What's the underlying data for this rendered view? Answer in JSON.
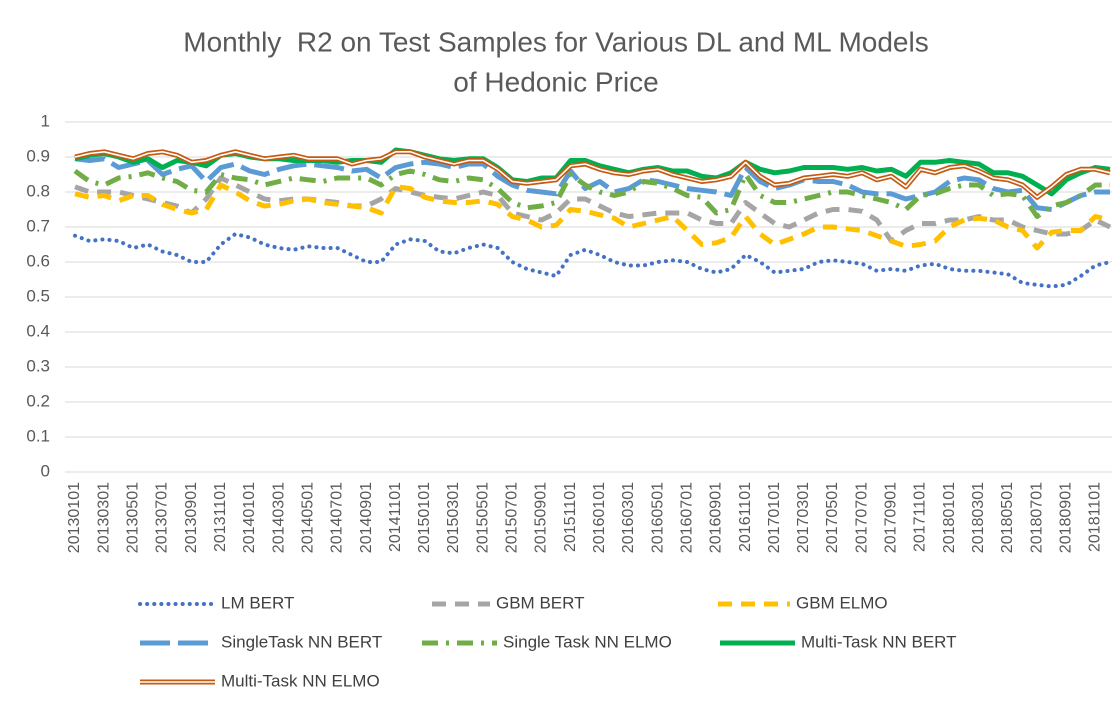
{
  "chart_data": {
    "type": "line",
    "title": [
      "Monthly  R2 on Test Samples for Various DL and ML Models",
      "of Hedonic Price"
    ],
    "categories": [
      "20130101",
      null,
      "20130301",
      null,
      "20130501",
      null,
      "20130701",
      null,
      "20130901",
      null,
      "20131101",
      null,
      "20140101",
      null,
      "20140301",
      null,
      "20140501",
      null,
      "20140701",
      null,
      "20140901",
      null,
      "20141101",
      null,
      "20150101",
      null,
      "20150301",
      null,
      "20150501",
      null,
      "20150701",
      null,
      "20150901",
      null,
      "20151101",
      null,
      "20160101",
      null,
      "20160301",
      null,
      "20160501",
      null,
      "20160701",
      null,
      "20160901",
      null,
      "20161101",
      null,
      "20170101",
      null,
      "20170301",
      null,
      "20170501",
      null,
      "20170701",
      null,
      "20170901",
      null,
      "20171101",
      null,
      "20180101",
      null,
      "20180301",
      null,
      "20180501",
      null,
      "20180701",
      null,
      "20180901",
      null,
      "20181101",
      null
    ],
    "ylim": [
      0,
      1
    ],
    "yticks": [
      0,
      0.1,
      0.2,
      0.3,
      0.4,
      0.5,
      0.6,
      0.7,
      0.8,
      0.9,
      1
    ],
    "grid": true,
    "legend": "bottom",
    "series": [
      {
        "name": "LM BERT",
        "color": "#4472c4",
        "style": "dot",
        "values": [
          0.675,
          0.66,
          0.665,
          0.66,
          0.64,
          0.65,
          0.63,
          0.62,
          0.6,
          0.6,
          0.65,
          0.68,
          0.67,
          0.65,
          0.64,
          0.635,
          0.645,
          0.64,
          0.64,
          0.62,
          0.6,
          0.6,
          0.65,
          0.665,
          0.66,
          0.63,
          0.625,
          0.64,
          0.65,
          0.64,
          0.6,
          0.58,
          0.57,
          0.56,
          0.62,
          0.635,
          0.62,
          0.6,
          0.59,
          0.59,
          0.6,
          0.605,
          0.6,
          0.58,
          0.57,
          0.58,
          0.62,
          0.6,
          0.57,
          0.575,
          0.58,
          0.6,
          0.605,
          0.6,
          0.595,
          0.575,
          0.58,
          0.575,
          0.59,
          0.595,
          0.58,
          0.575,
          0.575,
          0.57,
          0.565,
          0.54,
          0.535,
          0.53,
          0.535,
          0.56,
          0.59,
          0.6
        ]
      },
      {
        "name": "GBM BERT",
        "color": "#a5a5a5",
        "style": "dash",
        "values": [
          0.815,
          0.8,
          0.8,
          0.8,
          0.79,
          0.78,
          0.77,
          0.76,
          0.74,
          0.78,
          0.84,
          0.82,
          0.8,
          0.78,
          0.775,
          0.78,
          0.78,
          0.775,
          0.77,
          0.76,
          0.76,
          0.78,
          0.81,
          0.8,
          0.79,
          0.785,
          0.78,
          0.79,
          0.8,
          0.79,
          0.74,
          0.73,
          0.72,
          0.74,
          0.78,
          0.78,
          0.76,
          0.74,
          0.73,
          0.735,
          0.74,
          0.74,
          0.74,
          0.72,
          0.71,
          0.71,
          0.77,
          0.74,
          0.71,
          0.7,
          0.72,
          0.74,
          0.75,
          0.75,
          0.745,
          0.72,
          0.66,
          0.69,
          0.71,
          0.71,
          0.72,
          0.72,
          0.73,
          0.72,
          0.72,
          0.7,
          0.69,
          0.68,
          0.68,
          0.69,
          0.72,
          0.7
        ]
      },
      {
        "name": "GBM ELMO",
        "color": "#ffc000",
        "style": "dash",
        "values": [
          0.795,
          0.785,
          0.79,
          0.775,
          0.79,
          0.79,
          0.765,
          0.75,
          0.74,
          0.75,
          0.82,
          0.8,
          0.775,
          0.76,
          0.765,
          0.775,
          0.78,
          0.77,
          0.765,
          0.76,
          0.755,
          0.74,
          0.815,
          0.81,
          0.785,
          0.775,
          0.77,
          0.77,
          0.775,
          0.765,
          0.73,
          0.72,
          0.7,
          0.705,
          0.75,
          0.745,
          0.735,
          0.725,
          0.7,
          0.71,
          0.72,
          0.73,
          0.69,
          0.65,
          0.655,
          0.67,
          0.73,
          0.68,
          0.65,
          0.665,
          0.68,
          0.7,
          0.7,
          0.695,
          0.69,
          0.675,
          0.66,
          0.645,
          0.65,
          0.66,
          0.7,
          0.72,
          0.725,
          0.72,
          0.7,
          0.69,
          0.64,
          0.685,
          0.69,
          0.69,
          0.73,
          0.72
        ]
      },
      {
        "name": "SingleTask NN BERT",
        "color": "#5b9bd5",
        "style": "longdash",
        "values": [
          0.895,
          0.89,
          0.895,
          0.87,
          0.88,
          0.89,
          0.85,
          0.865,
          0.875,
          0.83,
          0.87,
          0.88,
          0.86,
          0.85,
          0.865,
          0.875,
          0.88,
          0.875,
          0.87,
          0.86,
          0.865,
          0.84,
          0.87,
          0.88,
          0.885,
          0.88,
          0.87,
          0.88,
          0.88,
          0.845,
          0.82,
          0.805,
          0.8,
          0.795,
          0.86,
          0.81,
          0.83,
          0.8,
          0.81,
          0.835,
          0.83,
          0.82,
          0.81,
          0.805,
          0.8,
          0.79,
          0.87,
          0.83,
          0.81,
          0.82,
          0.835,
          0.83,
          0.83,
          0.82,
          0.8,
          0.795,
          0.795,
          0.78,
          0.79,
          0.8,
          0.83,
          0.84,
          0.835,
          0.81,
          0.8,
          0.805,
          0.755,
          0.75,
          0.77,
          0.79,
          0.8,
          0.8
        ]
      },
      {
        "name": "Single Task NN ELMO",
        "color": "#70ad47",
        "style": "dashdot",
        "values": [
          0.86,
          0.83,
          0.82,
          0.84,
          0.845,
          0.855,
          0.84,
          0.83,
          0.805,
          0.8,
          0.85,
          0.84,
          0.835,
          0.82,
          0.83,
          0.84,
          0.835,
          0.83,
          0.84,
          0.84,
          0.84,
          0.82,
          0.85,
          0.86,
          0.85,
          0.835,
          0.83,
          0.84,
          0.835,
          0.81,
          0.77,
          0.755,
          0.76,
          0.77,
          0.85,
          0.82,
          0.8,
          0.79,
          0.8,
          0.83,
          0.825,
          0.81,
          0.79,
          0.785,
          0.74,
          0.75,
          0.85,
          0.79,
          0.77,
          0.77,
          0.78,
          0.79,
          0.8,
          0.8,
          0.79,
          0.78,
          0.77,
          0.75,
          0.79,
          0.795,
          0.81,
          0.82,
          0.82,
          0.79,
          0.795,
          0.79,
          0.73,
          0.76,
          0.77,
          0.79,
          0.82,
          0.82
        ]
      },
      {
        "name": "Multi-Task NN BERT",
        "color": "#00b050",
        "style": "solid",
        "values": [
          0.895,
          0.905,
          0.91,
          0.9,
          0.885,
          0.895,
          0.87,
          0.89,
          0.885,
          0.875,
          0.905,
          0.91,
          0.9,
          0.895,
          0.895,
          0.89,
          0.89,
          0.89,
          0.885,
          0.89,
          0.89,
          0.885,
          0.92,
          0.915,
          0.905,
          0.895,
          0.89,
          0.895,
          0.895,
          0.87,
          0.835,
          0.83,
          0.84,
          0.84,
          0.89,
          0.89,
          0.875,
          0.865,
          0.855,
          0.865,
          0.87,
          0.86,
          0.86,
          0.845,
          0.84,
          0.855,
          0.885,
          0.865,
          0.855,
          0.86,
          0.87,
          0.87,
          0.87,
          0.865,
          0.87,
          0.86,
          0.865,
          0.845,
          0.885,
          0.885,
          0.89,
          0.885,
          0.88,
          0.855,
          0.855,
          0.845,
          0.82,
          0.795,
          0.835,
          0.855,
          0.87,
          0.865
        ]
      },
      {
        "name": "Multi-Task NN ELMO",
        "color": "#c55a11",
        "style": "double",
        "values": [
          0.9,
          0.91,
          0.915,
          0.905,
          0.895,
          0.91,
          0.915,
          0.905,
          0.885,
          0.89,
          0.905,
          0.915,
          0.905,
          0.895,
          0.9,
          0.905,
          0.895,
          0.895,
          0.895,
          0.88,
          0.89,
          0.895,
          0.915,
          0.915,
          0.9,
          0.89,
          0.88,
          0.89,
          0.89,
          0.865,
          0.83,
          0.825,
          0.83,
          0.835,
          0.875,
          0.88,
          0.865,
          0.855,
          0.85,
          0.86,
          0.865,
          0.85,
          0.84,
          0.83,
          0.835,
          0.845,
          0.885,
          0.845,
          0.82,
          0.825,
          0.84,
          0.845,
          0.85,
          0.845,
          0.855,
          0.835,
          0.845,
          0.815,
          0.865,
          0.855,
          0.87,
          0.875,
          0.86,
          0.84,
          0.835,
          0.82,
          0.785,
          0.815,
          0.85,
          0.865,
          0.865,
          0.855
        ]
      }
    ]
  }
}
